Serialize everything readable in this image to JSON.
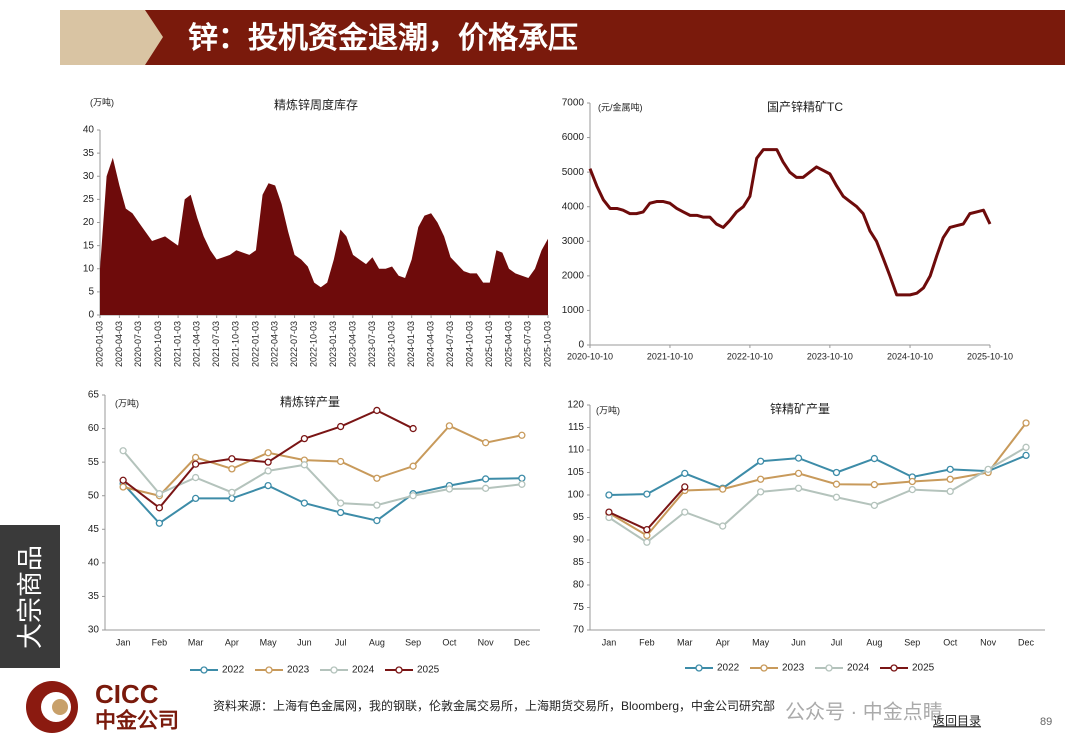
{
  "header": {
    "title": "锌：投机资金退潮，价格承压"
  },
  "side_label": "大宗商品",
  "footer": {
    "source": "资料来源：上海有色金属网，我的钢联，伦敦金属交易所，上海期货交易所，Bloomberg，中金公司研究部",
    "logo_en": "CICC",
    "logo_cn": "中金公司",
    "watermark": "公众号 · 中金点睛",
    "nav": "返回目录",
    "page": "89"
  },
  "chart_data": [
    {
      "type": "area",
      "title": "精炼锌周度库存",
      "unit": "(万吨)",
      "color": "#6e0b0b",
      "x": [
        "2020-01-03",
        "2020-02-03",
        "2020-03-03",
        "2020-04-03",
        "2020-05-03",
        "2020-06-03",
        "2020-07-03",
        "2020-08-03",
        "2020-09-03",
        "2020-10-03",
        "2020-11-03",
        "2020-12-03",
        "2021-01-03",
        "2021-02-03",
        "2021-03-03",
        "2021-04-03",
        "2021-05-03",
        "2021-06-03",
        "2021-07-03",
        "2021-08-03",
        "2021-09-03",
        "2021-10-03",
        "2021-11-03",
        "2021-12-03",
        "2022-01-03",
        "2022-02-03",
        "2022-03-03",
        "2022-04-03",
        "2022-05-03",
        "2022-06-03",
        "2022-07-03",
        "2022-08-03",
        "2022-09-03",
        "2022-10-03",
        "2022-11-03",
        "2022-12-03",
        "2023-01-03",
        "2023-02-03",
        "2023-03-03",
        "2023-04-03",
        "2023-05-03",
        "2023-06-03",
        "2023-07-03",
        "2023-08-03",
        "2023-09-03",
        "2023-10-03",
        "2023-11-03",
        "2023-12-03",
        "2024-01-03",
        "2024-02-03",
        "2024-03-03",
        "2024-04-03",
        "2024-05-03",
        "2024-06-03",
        "2024-07-03",
        "2024-08-03",
        "2024-09-03",
        "2024-10-03",
        "2024-11-03",
        "2024-12-03",
        "2025-01-03",
        "2025-02-03",
        "2025-03-03",
        "2025-04-03",
        "2025-05-03",
        "2025-06-03",
        "2025-07-03",
        "2025-08-03",
        "2025-09-03",
        "2025-10-03"
      ],
      "values": [
        10,
        30,
        34,
        28,
        23,
        22,
        20,
        18,
        16,
        16.5,
        17,
        16,
        15,
        25,
        26,
        21,
        17,
        14,
        12,
        12.5,
        13,
        14,
        13.5,
        13,
        14,
        26,
        28.5,
        28,
        24,
        18,
        13,
        12,
        10.5,
        7,
        6,
        7,
        12,
        18.5,
        17,
        13,
        12,
        11,
        12.5,
        10,
        10,
        10.5,
        8.5,
        8,
        12,
        19,
        21.5,
        22,
        20,
        17,
        12.5,
        11,
        9.5,
        9,
        9,
        7,
        7,
        14,
        13.5,
        10,
        9,
        8.5,
        8,
        10,
        14,
        16.5
      ],
      "xlim": [
        "2020-01-03",
        "2025-10-03"
      ],
      "xticks": [
        "2020-01-03",
        "2020-04-03",
        "2020-07-03",
        "2020-10-03",
        "2021-01-03",
        "2021-04-03",
        "2021-07-03",
        "2021-10-03",
        "2022-01-03",
        "2022-04-03",
        "2022-07-03",
        "2022-10-03",
        "2023-01-03",
        "2023-04-03",
        "2023-07-03",
        "2023-10-03",
        "2024-01-03",
        "2024-04-03",
        "2024-07-03",
        "2024-10-03",
        "2025-01-03",
        "2025-04-03",
        "2025-07-03",
        "2025-10-03"
      ],
      "ylim": [
        0,
        40
      ],
      "yticks": [
        0,
        5,
        10,
        15,
        20,
        25,
        30,
        35,
        40
      ]
    },
    {
      "type": "line",
      "title": "国产锌精矿TC",
      "unit": "(元/金属吨)",
      "color": "#6e0b0b",
      "x": [
        "2020-10-10",
        "2020-11-10",
        "2020-12-10",
        "2021-01-10",
        "2021-02-10",
        "2021-03-10",
        "2021-04-10",
        "2021-05-10",
        "2021-06-10",
        "2021-07-10",
        "2021-08-10",
        "2021-09-10",
        "2021-10-10",
        "2021-11-10",
        "2021-12-10",
        "2022-01-10",
        "2022-02-10",
        "2022-03-10",
        "2022-04-10",
        "2022-05-10",
        "2022-06-10",
        "2022-07-10",
        "2022-08-10",
        "2022-09-10",
        "2022-10-10",
        "2022-11-10",
        "2022-12-10",
        "2023-01-10",
        "2023-02-10",
        "2023-03-10",
        "2023-04-10",
        "2023-05-10",
        "2023-06-10",
        "2023-07-10",
        "2023-08-10",
        "2023-09-10",
        "2023-10-10",
        "2023-11-10",
        "2023-12-10",
        "2024-01-10",
        "2024-02-10",
        "2024-03-10",
        "2024-04-10",
        "2024-05-10",
        "2024-06-10",
        "2024-07-10",
        "2024-08-10",
        "2024-09-10",
        "2024-10-10",
        "2024-11-10",
        "2024-12-10",
        "2025-01-10",
        "2025-02-10",
        "2025-03-10",
        "2025-04-10",
        "2025-05-10",
        "2025-06-10",
        "2025-07-10",
        "2025-08-10",
        "2025-09-10",
        "2025-10-10"
      ],
      "values": [
        5100,
        4600,
        4200,
        3950,
        3950,
        3900,
        3800,
        3800,
        3850,
        4100,
        4150,
        4150,
        4100,
        3950,
        3850,
        3750,
        3750,
        3700,
        3700,
        3500,
        3400,
        3600,
        3850,
        4000,
        4300,
        5400,
        5650,
        5650,
        5650,
        5300,
        5000,
        4850,
        4850,
        5000,
        5150,
        5050,
        4950,
        4600,
        4300,
        4150,
        4000,
        3800,
        3300,
        3000,
        2500,
        2000,
        1450,
        1450,
        1450,
        1500,
        1650,
        2000,
        2600,
        3100,
        3400,
        3450,
        3500,
        3800,
        3850,
        3900,
        3500
      ],
      "xlim": [
        "2020-10-10",
        "2025-10-10"
      ],
      "xticks": [
        "2020-10-10",
        "2021-10-10",
        "2022-10-10",
        "2023-10-10",
        "2024-10-10",
        "2025-10-10"
      ],
      "ylim": [
        0,
        7000
      ],
      "yticks": [
        0,
        1000,
        2000,
        3000,
        4000,
        5000,
        6000,
        7000
      ]
    },
    {
      "type": "line",
      "title": "精炼锌产量",
      "unit": "(万吨)",
      "categories": [
        "Jan",
        "Feb",
        "Mar",
        "Apr",
        "May",
        "Jun",
        "Jul",
        "Aug",
        "Sep",
        "Oct",
        "Nov",
        "Dec"
      ],
      "series": [
        {
          "name": "2022",
          "color": "#3d8ca8",
          "values": [
            51.8,
            45.9,
            49.6,
            49.6,
            51.5,
            48.9,
            47.5,
            46.3,
            50.3,
            51.5,
            52.5,
            52.6
          ]
        },
        {
          "name": "2023",
          "color": "#c89a5b",
          "values": [
            51.3,
            50.0,
            55.7,
            54.0,
            56.4,
            55.3,
            55.1,
            52.6,
            54.4,
            60.4,
            57.9,
            59.0
          ]
        },
        {
          "name": "2024",
          "color": "#b4c3bc",
          "values": [
            56.7,
            50.3,
            52.7,
            50.5,
            53.7,
            54.6,
            48.9,
            48.6,
            50.0,
            51.0,
            51.1,
            51.7
          ]
        },
        {
          "name": "2025",
          "color": "#7a1515",
          "values": [
            52.3,
            48.2,
            54.7,
            55.5,
            55.0,
            58.5,
            60.3,
            62.7,
            60.0,
            null,
            null,
            null
          ]
        }
      ],
      "ylim": [
        30,
        65
      ],
      "yticks": [
        30,
        35,
        40,
        45,
        50,
        55,
        60,
        65
      ]
    },
    {
      "type": "line",
      "title": "锌精矿产量",
      "unit": "(万吨)",
      "categories": [
        "Jan",
        "Feb",
        "Mar",
        "Apr",
        "May",
        "Jun",
        "Jul",
        "Aug",
        "Sep",
        "Oct",
        "Nov",
        "Dec"
      ],
      "series": [
        {
          "name": "2022",
          "color": "#3d8ca8",
          "values": [
            100.0,
            100.2,
            104.8,
            101.5,
            107.5,
            108.2,
            105.0,
            108.1,
            104.0,
            105.7,
            105.3,
            108.8
          ]
        },
        {
          "name": "2023",
          "color": "#c89a5b",
          "values": [
            96.0,
            91.0,
            101.0,
            101.3,
            103.5,
            104.8,
            102.4,
            102.3,
            103.0,
            103.5,
            105.0,
            116.0
          ]
        },
        {
          "name": "2024",
          "color": "#b4c3bc",
          "values": [
            95.0,
            89.5,
            96.2,
            93.1,
            100.7,
            101.5,
            99.5,
            97.7,
            101.2,
            100.8,
            105.7,
            110.6
          ]
        },
        {
          "name": "2025",
          "color": "#7a1515",
          "values": [
            96.2,
            92.3,
            101.8,
            null,
            null,
            null,
            null,
            null,
            null,
            null,
            null,
            null
          ]
        }
      ],
      "ylim": [
        70,
        120
      ],
      "yticks": [
        70,
        75,
        80,
        85,
        90,
        95,
        100,
        105,
        110,
        115,
        120
      ]
    }
  ]
}
